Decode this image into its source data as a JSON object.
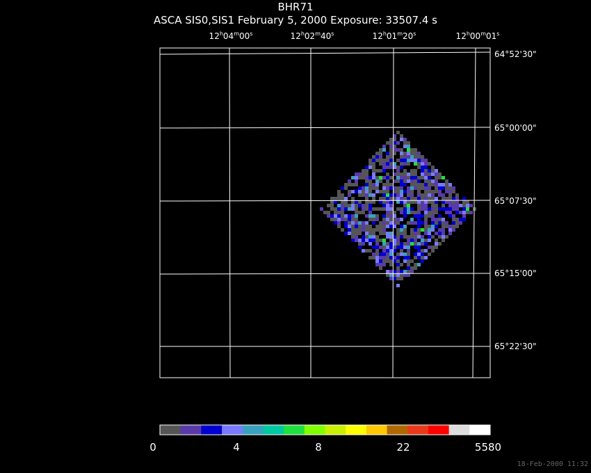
{
  "title": "BHR71",
  "subtitle": "ASCA SIS0,SIS1 February 5, 2000 Exposure: 33507.4 s",
  "ra_ticks": [
    {
      "h": "12",
      "m": "04",
      "s": "00"
    },
    {
      "h": "12",
      "m": "02",
      "s": "40"
    },
    {
      "h": "12",
      "m": "01",
      "s": "20"
    },
    {
      "h": "12",
      "m": "00",
      "s": "01"
    }
  ],
  "dec_ticks": [
    "64°52'30\"",
    "65°00'00\"",
    "65°07'30\"",
    "65°15'00\"",
    "65°22'30\""
  ],
  "colorbar": {
    "colors": [
      "#555555",
      "#5a3aa8",
      "#0000d0",
      "#7a7aff",
      "#3aa0c0",
      "#00c8a0",
      "#20e040",
      "#80ff00",
      "#c8f000",
      "#ffff00",
      "#ffc800",
      "#b06800",
      "#e83a1a",
      "#ff0000",
      "#dddddd",
      "#ffffff"
    ],
    "labels": [
      "0",
      "4",
      "8",
      "22",
      "5580"
    ]
  },
  "timestamp": "18-Feb-2000 11:32"
}
